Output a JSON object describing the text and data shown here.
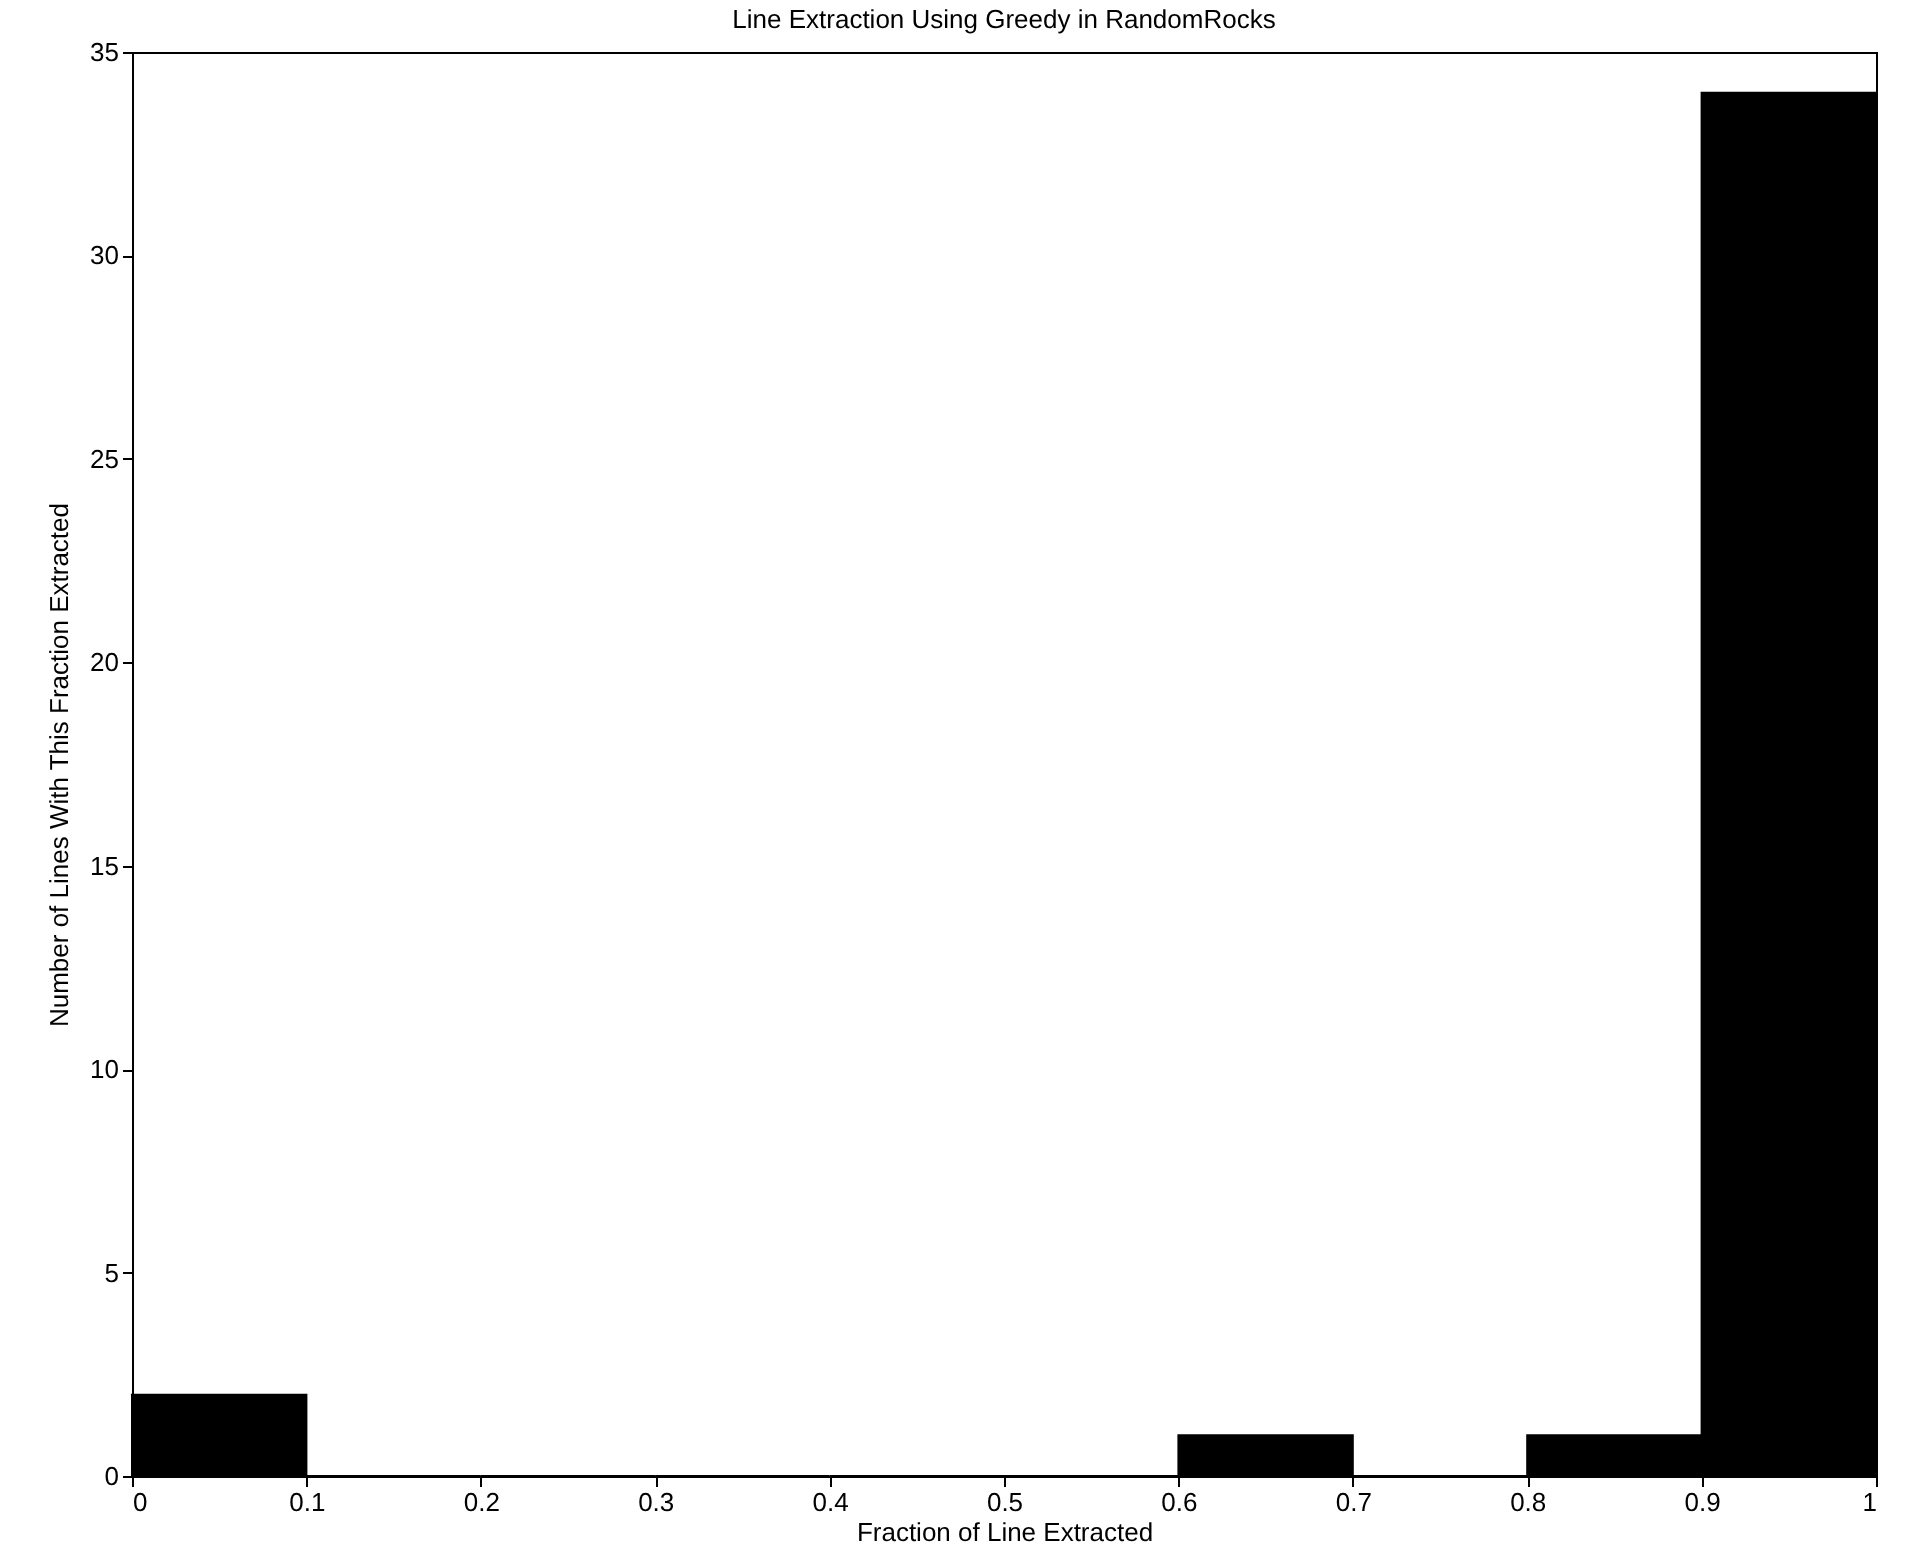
{
  "chart_data": {
    "type": "histogram",
    "title": "Line Extraction Using Greedy in RandomRocks",
    "xlabel": "Fraction of Line Extracted",
    "ylabel": "Number of Lines With This Fraction Extracted",
    "bins": [
      0,
      0.1,
      0.2,
      0.3,
      0.4,
      0.5,
      0.6,
      0.7,
      0.8,
      0.9,
      1
    ],
    "values": [
      2,
      0,
      0,
      0,
      0,
      0,
      1,
      0,
      1,
      34
    ],
    "color": "#000000",
    "xlim": [
      0,
      1
    ],
    "xticks": [
      0,
      0.1,
      0.2,
      0.3,
      0.4,
      0.5,
      0.6,
      0.7,
      0.8,
      0.9,
      1
    ],
    "ylim": [
      0,
      35
    ],
    "yticks": [
      0,
      5,
      10,
      15,
      20,
      25,
      30,
      35
    ],
    "grid": false
  }
}
